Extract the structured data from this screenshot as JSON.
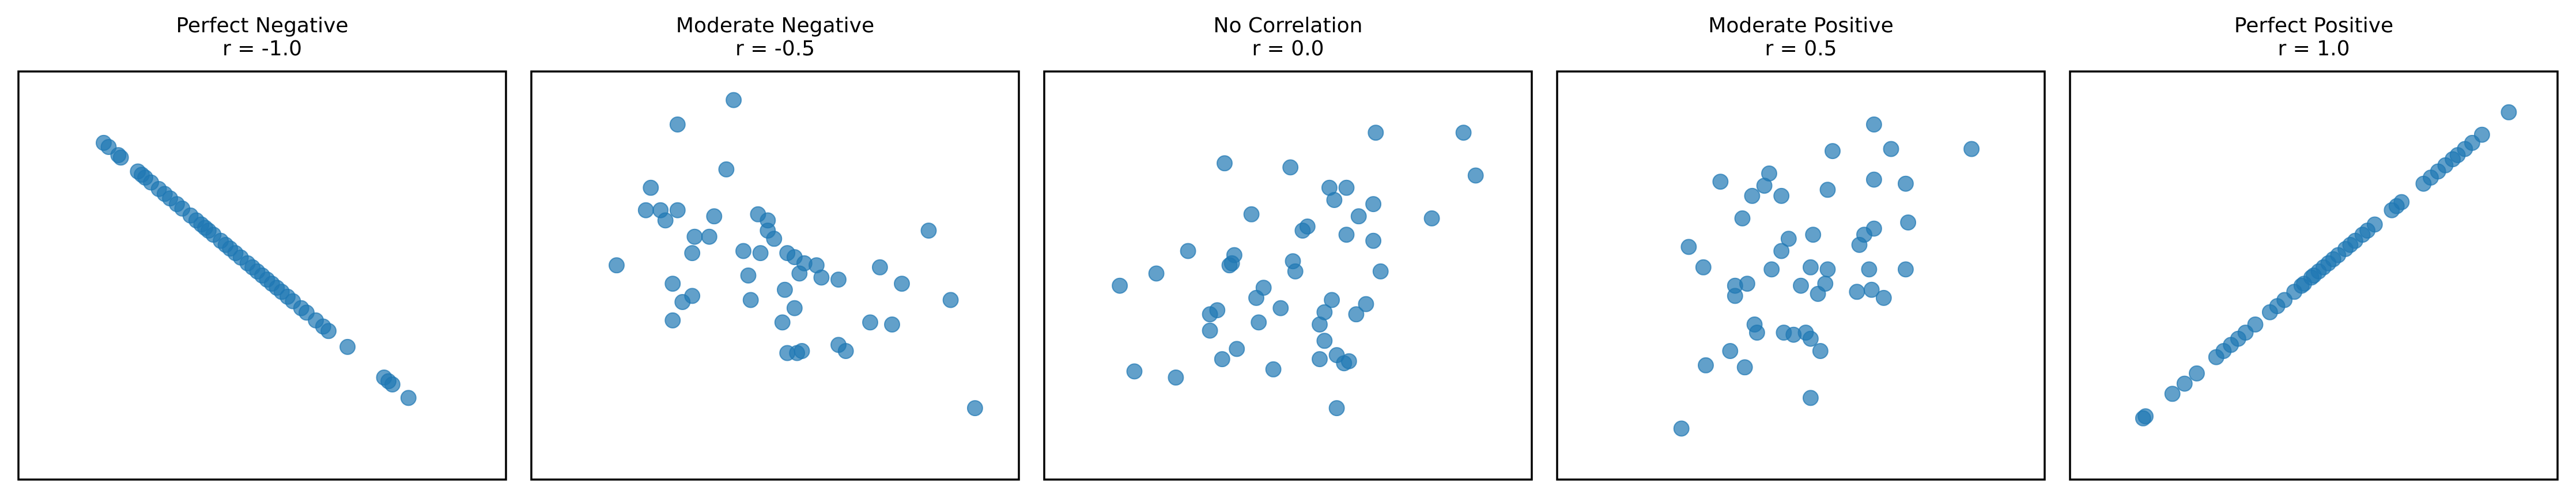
{
  "chart_data": [
    {
      "type": "scatter",
      "title": "Perfect Negative",
      "subtitle": "r = -1.0",
      "x_ticks_shown": false,
      "y_ticks_shown": false,
      "grid": false,
      "xlim": [
        0,
        100
      ],
      "ylim": [
        0,
        100
      ],
      "points": [
        [
          17.5,
          82.5
        ],
        [
          18.5,
          81.5
        ],
        [
          20.5,
          79.5
        ],
        [
          21.0,
          78.9
        ],
        [
          24.5,
          75.5
        ],
        [
          25.3,
          74.7
        ],
        [
          26.0,
          74.0
        ],
        [
          27.2,
          72.8
        ],
        [
          28.8,
          71.2
        ],
        [
          30.0,
          70.0
        ],
        [
          31.1,
          68.9
        ],
        [
          32.5,
          67.5
        ],
        [
          33.6,
          66.4
        ],
        [
          35.3,
          64.7
        ],
        [
          36.5,
          63.5
        ],
        [
          37.5,
          62.5
        ],
        [
          38.3,
          61.7
        ],
        [
          39.0,
          61.0
        ],
        [
          40.0,
          60.0
        ],
        [
          41.5,
          58.5
        ],
        [
          42.5,
          57.5
        ],
        [
          43.4,
          56.6
        ],
        [
          44.5,
          55.5
        ],
        [
          45.6,
          54.4
        ],
        [
          47.0,
          53.0
        ],
        [
          48.0,
          52.0
        ],
        [
          49.0,
          51.0
        ],
        [
          50.0,
          50.0
        ],
        [
          51.0,
          49.0
        ],
        [
          52.0,
          48.0
        ],
        [
          53.0,
          47.0
        ],
        [
          54.0,
          46.0
        ],
        [
          55.2,
          44.8
        ],
        [
          56.3,
          43.7
        ],
        [
          58.0,
          42.0
        ],
        [
          59.1,
          40.9
        ],
        [
          61.0,
          39.0
        ],
        [
          62.5,
          37.5
        ],
        [
          63.6,
          36.4
        ],
        [
          67.5,
          32.5
        ],
        [
          75.0,
          25.0
        ],
        [
          75.9,
          24.1
        ],
        [
          76.7,
          23.3
        ],
        [
          80.0,
          20.0
        ]
      ]
    },
    {
      "type": "scatter",
      "title": "Moderate Negative",
      "subtitle": "r = -0.5",
      "x_ticks_shown": false,
      "y_ticks_shown": false,
      "grid": false,
      "xlim": [
        0,
        100
      ],
      "ylim": [
        0,
        100
      ],
      "points": [
        [
          30.0,
          87.0
        ],
        [
          41.5,
          93.0
        ],
        [
          24.5,
          71.5
        ],
        [
          23.5,
          66.0
        ],
        [
          26.5,
          66.0
        ],
        [
          27.5,
          63.5
        ],
        [
          30.0,
          66.0
        ],
        [
          40.0,
          76.0
        ],
        [
          37.5,
          64.5
        ],
        [
          33.5,
          59.5
        ],
        [
          36.5,
          59.5
        ],
        [
          46.5,
          65.0
        ],
        [
          48.5,
          63.5
        ],
        [
          49.8,
          59.0
        ],
        [
          48.5,
          61.0
        ],
        [
          43.5,
          56.0
        ],
        [
          47.0,
          55.5
        ],
        [
          33.0,
          55.5
        ],
        [
          52.5,
          55.5
        ],
        [
          54.0,
          54.5
        ],
        [
          56.0,
          53.0
        ],
        [
          55.0,
          50.5
        ],
        [
          58.5,
          52.5
        ],
        [
          59.5,
          49.5
        ],
        [
          17.5,
          52.5
        ],
        [
          29.0,
          48.0
        ],
        [
          44.5,
          50.0
        ],
        [
          71.5,
          52.0
        ],
        [
          76.0,
          48.0
        ],
        [
          81.5,
          61.0
        ],
        [
          33.0,
          45.0
        ],
        [
          31.0,
          43.5
        ],
        [
          45.0,
          44.0
        ],
        [
          52.0,
          46.5
        ],
        [
          54.0,
          42.0
        ],
        [
          63.0,
          49.0
        ],
        [
          86.0,
          44.0
        ],
        [
          29.0,
          39.0
        ],
        [
          51.5,
          38.5
        ],
        [
          69.5,
          38.5
        ],
        [
          74.0,
          38.0
        ],
        [
          54.5,
          31.0
        ],
        [
          55.5,
          31.5
        ],
        [
          52.5,
          31.0
        ],
        [
          63.0,
          33.0
        ],
        [
          64.5,
          31.5
        ],
        [
          91.0,
          17.5
        ]
      ]
    },
    {
      "type": "scatter",
      "title": "No Correlation",
      "subtitle": "r = 0.0",
      "x_ticks_shown": false,
      "y_ticks_shown": false,
      "grid": false,
      "xlim": [
        0,
        100
      ],
      "ylim": [
        0,
        100
      ],
      "points": [
        [
          68.0,
          85.0
        ],
        [
          86.0,
          85.0
        ],
        [
          88.5,
          74.5
        ],
        [
          37.0,
          77.5
        ],
        [
          50.5,
          76.5
        ],
        [
          58.5,
          71.5
        ],
        [
          62.0,
          71.5
        ],
        [
          59.5,
          68.5
        ],
        [
          64.5,
          64.5
        ],
        [
          67.5,
          67.5
        ],
        [
          42.5,
          65.0
        ],
        [
          79.5,
          64.0
        ],
        [
          53.0,
          61.0
        ],
        [
          54.0,
          62.0
        ],
        [
          62.0,
          60.0
        ],
        [
          67.5,
          58.5
        ],
        [
          29.5,
          56.0
        ],
        [
          39.0,
          55.0
        ],
        [
          38.5,
          53.0
        ],
        [
          51.0,
          53.5
        ],
        [
          51.5,
          51.0
        ],
        [
          23.0,
          50.5
        ],
        [
          38.0,
          52.5
        ],
        [
          15.5,
          47.5
        ],
        [
          69.0,
          51.0
        ],
        [
          45.0,
          47.0
        ],
        [
          43.5,
          44.5
        ],
        [
          35.5,
          41.5
        ],
        [
          34.0,
          40.5
        ],
        [
          59.0,
          44.0
        ],
        [
          48.5,
          42.0
        ],
        [
          66.0,
          43.0
        ],
        [
          57.5,
          41.0
        ],
        [
          56.5,
          38.0
        ],
        [
          64.0,
          40.5
        ],
        [
          34.0,
          36.5
        ],
        [
          44.0,
          38.5
        ],
        [
          39.5,
          32.0
        ],
        [
          57.5,
          34.0
        ],
        [
          60.0,
          30.5
        ],
        [
          61.5,
          28.5
        ],
        [
          36.5,
          29.5
        ],
        [
          47.0,
          27.0
        ],
        [
          56.5,
          29.5
        ],
        [
          62.5,
          29.0
        ],
        [
          18.5,
          26.5
        ],
        [
          27.0,
          25.0
        ],
        [
          60.0,
          17.5
        ]
      ]
    },
    {
      "type": "scatter",
      "title": "Moderate Positive",
      "subtitle": "r = 0.5",
      "x_ticks_shown": false,
      "y_ticks_shown": false,
      "grid": false,
      "xlim": [
        0,
        100
      ],
      "ylim": [
        0,
        100
      ],
      "points": [
        [
          65.0,
          87.0
        ],
        [
          85.0,
          81.0
        ],
        [
          56.5,
          80.5
        ],
        [
          68.5,
          81.0
        ],
        [
          43.5,
          75.0
        ],
        [
          42.5,
          72.0
        ],
        [
          65.0,
          73.5
        ],
        [
          71.5,
          72.5
        ],
        [
          55.5,
          71.0
        ],
        [
          33.5,
          73.0
        ],
        [
          46.0,
          69.5
        ],
        [
          40.0,
          69.5
        ],
        [
          38.0,
          64.0
        ],
        [
          72.0,
          63.0
        ],
        [
          65.0,
          61.5
        ],
        [
          63.0,
          60.0
        ],
        [
          52.5,
          60.0
        ],
        [
          62.0,
          57.5
        ],
        [
          46.0,
          56.0
        ],
        [
          47.5,
          59.0
        ],
        [
          27.0,
          57.0
        ],
        [
          30.0,
          52.0
        ],
        [
          44.0,
          51.5
        ],
        [
          52.0,
          52.0
        ],
        [
          55.5,
          51.5
        ],
        [
          64.0,
          51.5
        ],
        [
          71.5,
          51.5
        ],
        [
          61.5,
          46.0
        ],
        [
          64.5,
          46.5
        ],
        [
          39.0,
          48.0
        ],
        [
          50.0,
          47.5
        ],
        [
          53.5,
          45.5
        ],
        [
          55.0,
          48.0
        ],
        [
          36.5,
          47.5
        ],
        [
          36.5,
          45.0
        ],
        [
          67.0,
          44.5
        ],
        [
          40.5,
          38.0
        ],
        [
          41.0,
          36.0
        ],
        [
          46.5,
          36.0
        ],
        [
          48.5,
          35.5
        ],
        [
          51.0,
          36.0
        ],
        [
          52.0,
          34.5
        ],
        [
          54.0,
          31.5
        ],
        [
          35.5,
          31.5
        ],
        [
          30.5,
          28.0
        ],
        [
          38.5,
          27.5
        ],
        [
          52.0,
          20.0
        ],
        [
          25.5,
          12.5
        ]
      ]
    },
    {
      "type": "scatter",
      "title": "Perfect Positive",
      "subtitle": "r = 1.0",
      "x_ticks_shown": false,
      "y_ticks_shown": false,
      "grid": false,
      "xlim": [
        0,
        100
      ],
      "ylim": [
        0,
        100
      ],
      "points": [
        [
          15.0,
          15.0
        ],
        [
          15.5,
          15.5
        ],
        [
          21.0,
          21.0
        ],
        [
          23.5,
          23.5
        ],
        [
          26.0,
          26.0
        ],
        [
          30.0,
          30.0
        ],
        [
          31.5,
          31.5
        ],
        [
          33.0,
          33.0
        ],
        [
          34.5,
          34.5
        ],
        [
          36.0,
          36.0
        ],
        [
          38.0,
          38.0
        ],
        [
          41.0,
          41.0
        ],
        [
          42.5,
          42.5
        ],
        [
          44.0,
          44.0
        ],
        [
          46.0,
          46.0
        ],
        [
          47.5,
          47.5
        ],
        [
          48.0,
          48.0
        ],
        [
          49.5,
          49.5
        ],
        [
          50.0,
          50.0
        ],
        [
          51.0,
          51.0
        ],
        [
          52.0,
          52.0
        ],
        [
          53.0,
          53.0
        ],
        [
          54.0,
          54.0
        ],
        [
          55.0,
          55.0
        ],
        [
          56.5,
          56.5
        ],
        [
          57.5,
          57.5
        ],
        [
          58.5,
          58.5
        ],
        [
          60.0,
          60.0
        ],
        [
          61.0,
          61.0
        ],
        [
          62.5,
          62.5
        ],
        [
          66.0,
          66.0
        ],
        [
          67.0,
          67.0
        ],
        [
          68.0,
          68.0
        ],
        [
          72.5,
          72.5
        ],
        [
          74.0,
          74.0
        ],
        [
          75.5,
          75.5
        ],
        [
          77.0,
          77.0
        ],
        [
          78.5,
          78.5
        ],
        [
          79.5,
          79.5
        ],
        [
          81.0,
          81.0
        ],
        [
          82.5,
          82.5
        ],
        [
          84.5,
          84.5
        ],
        [
          90.0,
          90.0
        ]
      ]
    }
  ]
}
